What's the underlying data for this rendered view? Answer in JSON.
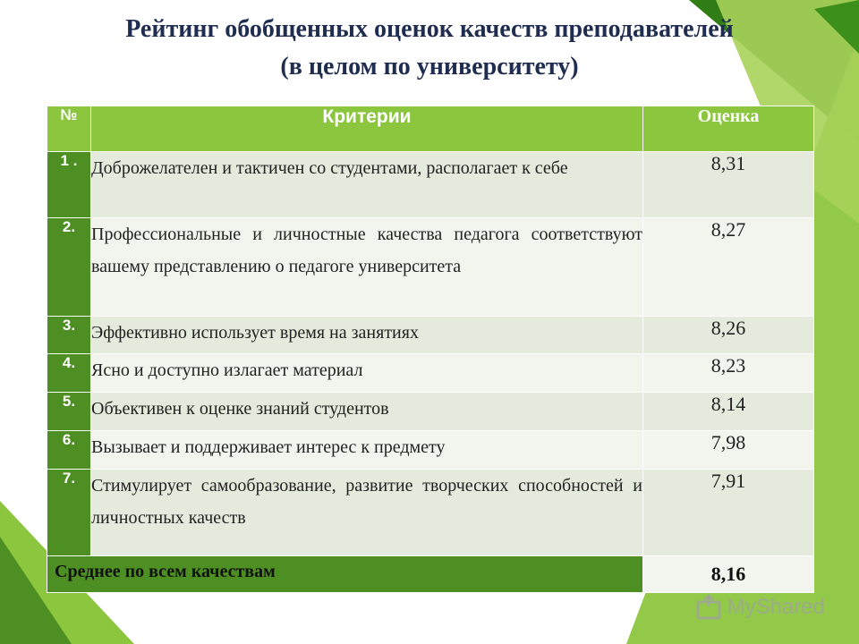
{
  "title": {
    "line1": "Рейтинг обобщенных оценок качеств преподавателей",
    "line2": "(в целом по университету)"
  },
  "table": {
    "headers": {
      "num": "№",
      "criteria": "Критерии",
      "score": "Оценка"
    },
    "rows": [
      {
        "num": "1 .",
        "criterion": "Доброжелателен и тактичен со студентами, располагает к себе",
        "score": "8,31"
      },
      {
        "num": "2.",
        "criterion": "Профессиональные и личностные качества педагога соответствуют вашему представлению о педагоге университета",
        "score": "8,27"
      },
      {
        "num": "3.",
        "criterion": "Эффективно использует время на занятиях",
        "score": "8,26"
      },
      {
        "num": "4.",
        "criterion": "Ясно и доступно излагает материал",
        "score": "8,23"
      },
      {
        "num": "5.",
        "criterion": "Объективен к оценке знаний студентов",
        "score": "8,14"
      },
      {
        "num": "6.",
        "criterion": "Вызывает и поддерживает интерес к предмету",
        "score": "7,98"
      },
      {
        "num": "7.",
        "criterion": "Стимулирует самообразование, развитие творческих способностей и личностных качеств",
        "score": "7,91"
      }
    ],
    "average": {
      "label": "Среднее по всем качествам",
      "score": "8,16"
    }
  },
  "watermark": {
    "text": "MyShared",
    "icon": "mysshared-logo-icon"
  },
  "colors": {
    "header_green": "#8cc63e",
    "dark_green": "#4e8f23",
    "row_odd": "#e4ebdc",
    "row_even": "#f2f5ee",
    "title": "#1f2d50"
  }
}
